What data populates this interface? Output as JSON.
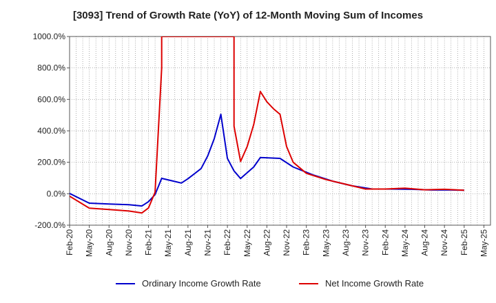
{
  "chart_data": {
    "type": "line",
    "title": "[3093]  Trend of Growth Rate (YoY) of 12-Month Moving Sum of Incomes",
    "xlabel": "",
    "ylabel": "",
    "ylim": [
      -200,
      1000
    ],
    "yticks": [
      "1000.0%",
      "800.0%",
      "600.0%",
      "400.0%",
      "200.0%",
      "0.0%",
      "-200.0%"
    ],
    "ytick_values": [
      1000,
      800,
      600,
      400,
      200,
      0,
      -200
    ],
    "xticks": [
      "Feb-20",
      "May-20",
      "Aug-20",
      "Nov-20",
      "Feb-21",
      "May-21",
      "Aug-21",
      "Nov-21",
      "Feb-22",
      "May-22",
      "Aug-22",
      "Nov-22",
      "Feb-23",
      "May-23",
      "Aug-23",
      "Nov-23",
      "Feb-24",
      "May-24",
      "Aug-24",
      "Nov-24",
      "Feb-25",
      "May-25"
    ],
    "x_start": "Feb-20",
    "grid": true,
    "legend_position": "bottom",
    "series": [
      {
        "name": "Ordinary Income Growth Rate",
        "color": "#0000cc",
        "points": [
          [
            "Feb-20",
            2
          ],
          [
            "May-20",
            -60
          ],
          [
            "Aug-20",
            -65
          ],
          [
            "Nov-20",
            -70
          ],
          [
            "Jan-21",
            -78
          ],
          [
            "Feb-21",
            -50
          ],
          [
            "Mar-21",
            -5
          ],
          [
            "Apr-21",
            98
          ],
          [
            "Jul-21",
            68
          ],
          [
            "Aug-21",
            95
          ],
          [
            "Oct-21",
            160
          ],
          [
            "Nov-21",
            240
          ],
          [
            "Dec-21",
            350
          ],
          [
            "Jan-22",
            505
          ],
          [
            "Feb-22",
            225
          ],
          [
            "Mar-22",
            145
          ],
          [
            "Apr-22",
            97
          ],
          [
            "Jun-22",
            170
          ],
          [
            "Jul-22",
            230
          ],
          [
            "Oct-22",
            225
          ],
          [
            "Dec-22",
            170
          ],
          [
            "Mar-23",
            120
          ],
          [
            "Jun-23",
            80
          ],
          [
            "Sep-23",
            50
          ],
          [
            "Dec-23",
            30
          ],
          [
            "Mar-24",
            30
          ],
          [
            "Jun-24",
            28
          ],
          [
            "Sep-24",
            24
          ],
          [
            "Dec-24",
            24
          ],
          [
            "Feb-25",
            22
          ]
        ]
      },
      {
        "name": "Net Income Growth Rate",
        "color": "#dd0000",
        "points": [
          [
            "Feb-20",
            -15
          ],
          [
            "May-20",
            -92
          ],
          [
            "Aug-20",
            -100
          ],
          [
            "Nov-20",
            -110
          ],
          [
            "Jan-21",
            -122
          ],
          [
            "Feb-21",
            -90
          ],
          [
            "Mar-21",
            10
          ],
          [
            "Apr-21",
            800
          ],
          [
            "Apr-21",
            1000
          ],
          [
            "Mar-22",
            1000
          ],
          [
            "Mar-22",
            430
          ],
          [
            "Apr-22",
            205
          ],
          [
            "May-22",
            300
          ],
          [
            "Jun-22",
            440
          ],
          [
            "Jul-22",
            650
          ],
          [
            "Aug-22",
            585
          ],
          [
            "Sep-22",
            540
          ],
          [
            "Oct-22",
            505
          ],
          [
            "Nov-22",
            300
          ],
          [
            "Dec-22",
            200
          ],
          [
            "Feb-23",
            130
          ],
          [
            "May-23",
            90
          ],
          [
            "Aug-23",
            60
          ],
          [
            "Nov-23",
            30
          ],
          [
            "Feb-24",
            30
          ],
          [
            "May-24",
            35
          ],
          [
            "Aug-24",
            25
          ],
          [
            "Nov-24",
            28
          ],
          [
            "Feb-25",
            22
          ]
        ]
      }
    ]
  }
}
